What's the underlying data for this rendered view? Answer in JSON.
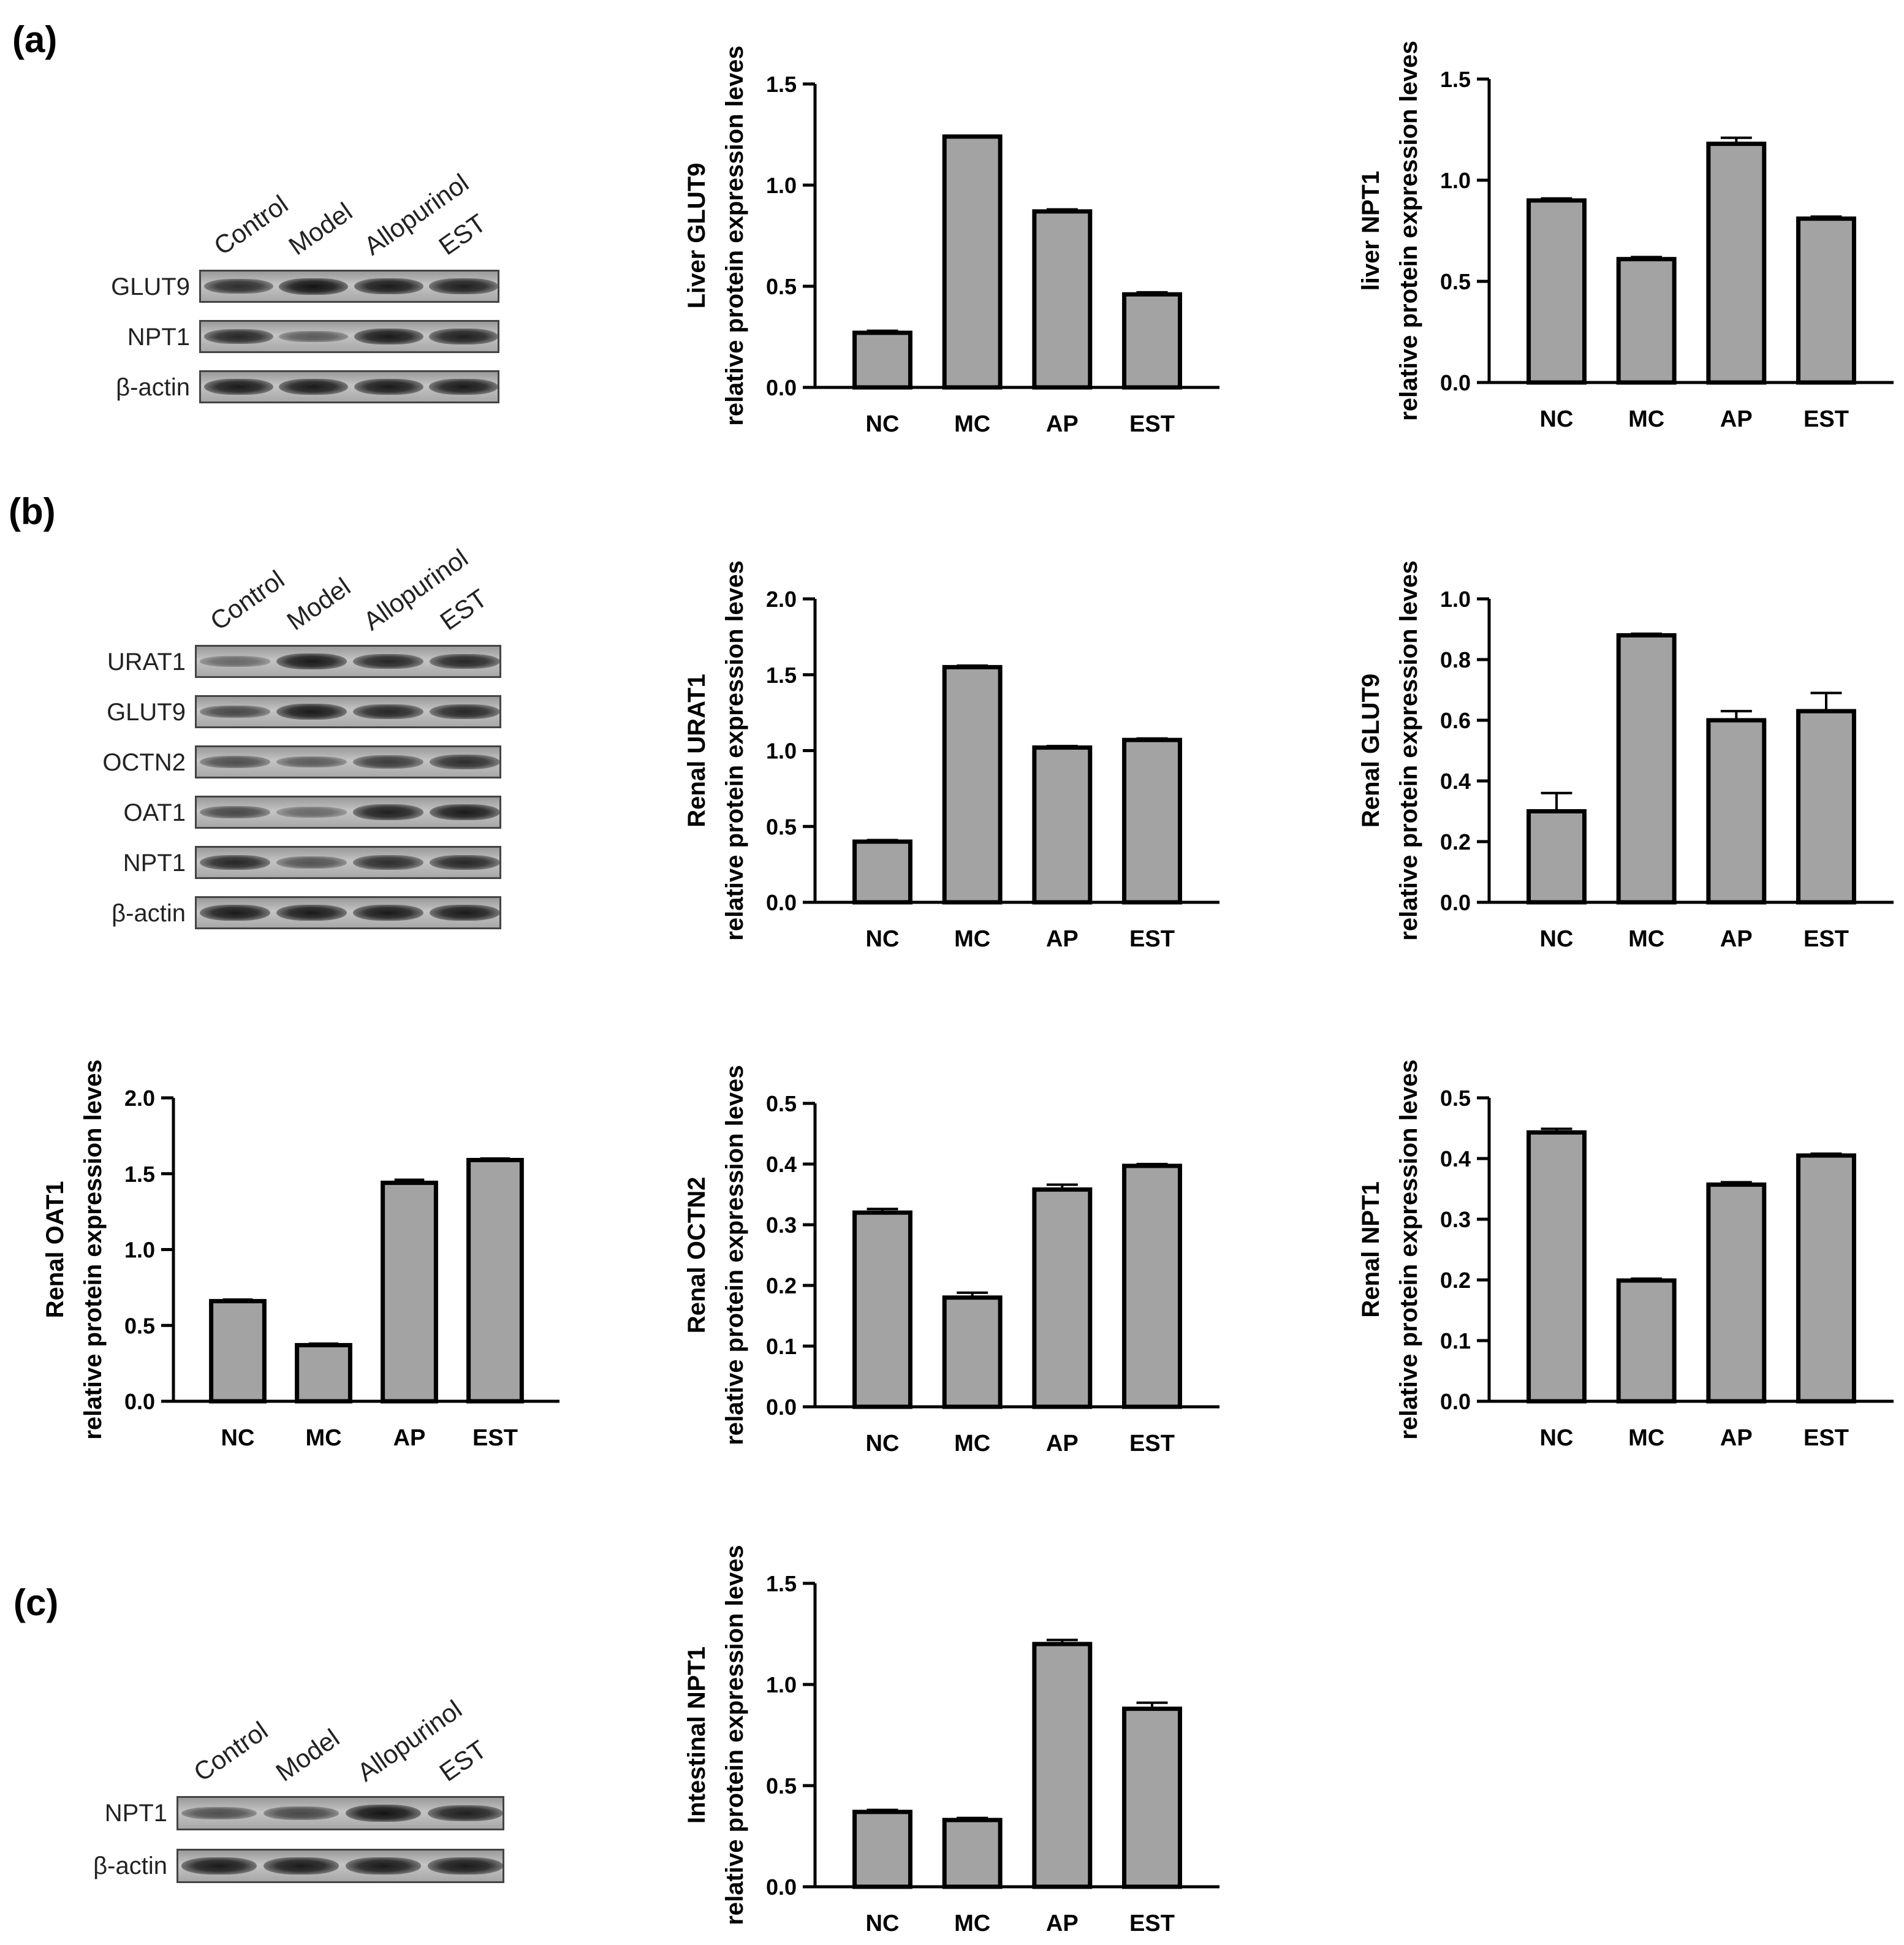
{
  "panels": {
    "a": "(a)",
    "b": "(b)",
    "c": "(c)"
  },
  "colors": {
    "bar_fill": "#a3a3a3",
    "bar_stroke": "#000000",
    "axis": "#000000"
  },
  "blots": {
    "a": {
      "lanes": [
        "Control",
        "Model",
        "Allopurinol",
        "EST"
      ],
      "rows": [
        {
          "label": "GLUT9",
          "intensity": [
            0.8,
            1.0,
            0.95,
            0.9
          ]
        },
        {
          "label": "NPT1",
          "intensity": [
            0.85,
            0.45,
            0.95,
            0.9
          ]
        },
        {
          "label": "β-actin",
          "intensity": [
            0.95,
            0.95,
            0.95,
            0.95
          ]
        }
      ]
    },
    "b": {
      "lanes": [
        "Control",
        "Model",
        "Allopurinol",
        "EST"
      ],
      "rows": [
        {
          "label": "URAT1",
          "intensity": [
            0.35,
            0.95,
            0.85,
            0.85
          ]
        },
        {
          "label": "GLUT9",
          "intensity": [
            0.6,
            0.95,
            0.85,
            0.85
          ]
        },
        {
          "label": "OCTN2",
          "intensity": [
            0.55,
            0.45,
            0.7,
            0.8
          ]
        },
        {
          "label": "OAT1",
          "intensity": [
            0.6,
            0.35,
            0.9,
            0.95
          ]
        },
        {
          "label": "NPT1",
          "intensity": [
            0.85,
            0.5,
            0.8,
            0.85
          ]
        },
        {
          "label": "β-actin",
          "intensity": [
            0.95,
            0.95,
            0.95,
            0.95
          ]
        }
      ]
    },
    "c": {
      "lanes": [
        "Control",
        "Model",
        "Allopurinol",
        "EST"
      ],
      "rows": [
        {
          "label": "NPT1",
          "intensity": [
            0.55,
            0.6,
            1.0,
            0.9
          ]
        },
        {
          "label": "β-actin",
          "intensity": [
            0.95,
            0.95,
            0.95,
            0.95
          ]
        }
      ]
    }
  },
  "chart_data": [
    {
      "id": "liver-glut9",
      "type": "bar",
      "categories": [
        "NC",
        "MC",
        "AP",
        "EST"
      ],
      "values": [
        0.27,
        1.24,
        0.87,
        0.46
      ],
      "errors": [
        0.01,
        0.0,
        0.01,
        0.01
      ],
      "ylabel": [
        "Liver GLUT9",
        "relative protein expression leves"
      ],
      "ylim": [
        0,
        1.5
      ],
      "yticks": [
        "0.0",
        "0.5",
        "1.0",
        "1.5"
      ],
      "tick_step": 0.5
    },
    {
      "id": "liver-npt1",
      "type": "bar",
      "categories": [
        "NC",
        "MC",
        "AP",
        "EST"
      ],
      "values": [
        0.9,
        0.61,
        1.18,
        0.81
      ],
      "errors": [
        0.01,
        0.01,
        0.03,
        0.01
      ],
      "ylabel": [
        "liver NPT1",
        "relative protein expression leves"
      ],
      "ylim": [
        0,
        1.5
      ],
      "yticks": [
        "0.0",
        "0.5",
        "1.0",
        "1.5"
      ],
      "tick_step": 0.5
    },
    {
      "id": "renal-urat1",
      "type": "bar",
      "categories": [
        "NC",
        "MC",
        "AP",
        "EST"
      ],
      "values": [
        0.4,
        1.55,
        1.02,
        1.07
      ],
      "errors": [
        0.01,
        0.01,
        0.01,
        0.01
      ],
      "ylabel": [
        "Renal URAT1",
        "relative protein expression leves"
      ],
      "ylim": [
        0,
        2.0
      ],
      "yticks": [
        "0.0",
        "0.5",
        "1.0",
        "1.5",
        "2.0"
      ],
      "tick_step": 0.5
    },
    {
      "id": "renal-glut9",
      "type": "bar",
      "categories": [
        "NC",
        "MC",
        "AP",
        "EST"
      ],
      "values": [
        0.3,
        0.88,
        0.6,
        0.63
      ],
      "errors": [
        0.06,
        0.005,
        0.03,
        0.06
      ],
      "ylabel": [
        "Renal GLUT9",
        "relative protein expression leves"
      ],
      "ylim": [
        0,
        1.0
      ],
      "yticks": [
        "0.0",
        "0.2",
        "0.4",
        "0.6",
        "0.8",
        "1.0"
      ],
      "tick_step": 0.2
    },
    {
      "id": "renal-oat1",
      "type": "bar",
      "categories": [
        "NC",
        "MC",
        "AP",
        "EST"
      ],
      "values": [
        0.66,
        0.37,
        1.44,
        1.59
      ],
      "errors": [
        0.01,
        0.01,
        0.02,
        0.01
      ],
      "ylabel": [
        "Renal OAT1",
        "relative protein expression leves"
      ],
      "ylim": [
        0,
        2.0
      ],
      "yticks": [
        "0.0",
        "0.5",
        "1.0",
        "1.5",
        "2.0"
      ],
      "tick_step": 0.5
    },
    {
      "id": "renal-octn2",
      "type": "bar",
      "categories": [
        "NC",
        "MC",
        "AP",
        "EST"
      ],
      "values": [
        0.32,
        0.18,
        0.358,
        0.397
      ],
      "errors": [
        0.006,
        0.008,
        0.008,
        0.003
      ],
      "ylabel": [
        "Renal OCTN2",
        "relative protein expression leves"
      ],
      "ylim": [
        0,
        0.5
      ],
      "yticks": [
        "0.0",
        "0.1",
        "0.2",
        "0.3",
        "0.4",
        "0.5"
      ],
      "tick_step": 0.1
    },
    {
      "id": "renal-npt1",
      "type": "bar",
      "categories": [
        "NC",
        "MC",
        "AP",
        "EST"
      ],
      "values": [
        0.443,
        0.199,
        0.357,
        0.405
      ],
      "errors": [
        0.006,
        0.003,
        0.004,
        0.003
      ],
      "ylabel": [
        "Renal NPT1",
        "relative protein expression leves"
      ],
      "ylim": [
        0,
        0.5
      ],
      "yticks": [
        "0.0",
        "0.1",
        "0.2",
        "0.3",
        "0.4",
        "0.5"
      ],
      "tick_step": 0.1
    },
    {
      "id": "intestinal-npt1",
      "type": "bar",
      "categories": [
        "NC",
        "MC",
        "AP",
        "EST"
      ],
      "values": [
        0.37,
        0.33,
        1.2,
        0.88
      ],
      "errors": [
        0.01,
        0.01,
        0.02,
        0.03
      ],
      "ylabel": [
        "Intestinal NPT1",
        "relative protein expression leves"
      ],
      "ylim": [
        0,
        1.5
      ],
      "yticks": [
        "0.0",
        "0.5",
        "1.0",
        "1.5"
      ],
      "tick_step": 0.5
    }
  ]
}
